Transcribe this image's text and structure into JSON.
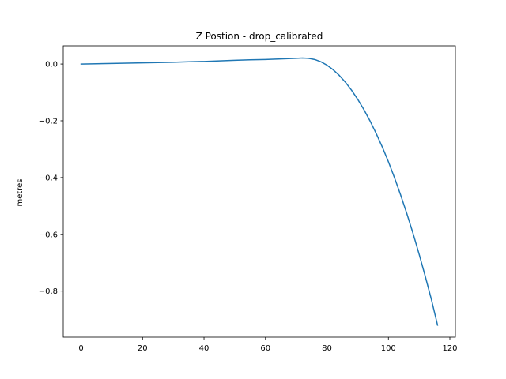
{
  "chart_data": {
    "type": "line",
    "title": "Z Postion - drop_calibrated",
    "xlabel": "",
    "ylabel": "metres",
    "xlim": [
      -5.8,
      121.8
    ],
    "ylim": [
      -0.9622,
      0.0642
    ],
    "xticks": [
      0,
      20,
      40,
      60,
      80,
      100,
      120
    ],
    "xtick_labels": [
      "0",
      "20",
      "40",
      "60",
      "80",
      "100",
      "120"
    ],
    "yticks": [
      0.0,
      -0.2,
      -0.4,
      -0.6,
      -0.8
    ],
    "ytick_labels": [
      "0.0",
      "−0.2",
      "−0.4",
      "−0.6",
      "−0.8"
    ],
    "grid": false,
    "series": [
      {
        "color": "#1f77b4",
        "x": [
          0,
          5,
          10,
          15,
          20,
          25,
          30,
          35,
          40,
          45,
          50,
          55,
          60,
          65,
          70,
          72,
          74,
          76,
          78,
          80,
          82,
          84,
          86,
          88,
          90,
          92,
          94,
          96,
          98,
          100,
          102,
          104,
          106,
          108,
          110,
          112,
          114,
          116
        ],
        "y": [
          0.0,
          0.001,
          0.002,
          0.003,
          0.004,
          0.005,
          0.006,
          0.008,
          0.009,
          0.011,
          0.013,
          0.015,
          0.016,
          0.018,
          0.02,
          0.021,
          0.02,
          0.016,
          0.008,
          -0.004,
          -0.02,
          -0.04,
          -0.064,
          -0.092,
          -0.124,
          -0.16,
          -0.2,
          -0.244,
          -0.292,
          -0.344,
          -0.401,
          -0.462,
          -0.527,
          -0.596,
          -0.67,
          -0.748,
          -0.83,
          -0.92
        ]
      }
    ]
  }
}
